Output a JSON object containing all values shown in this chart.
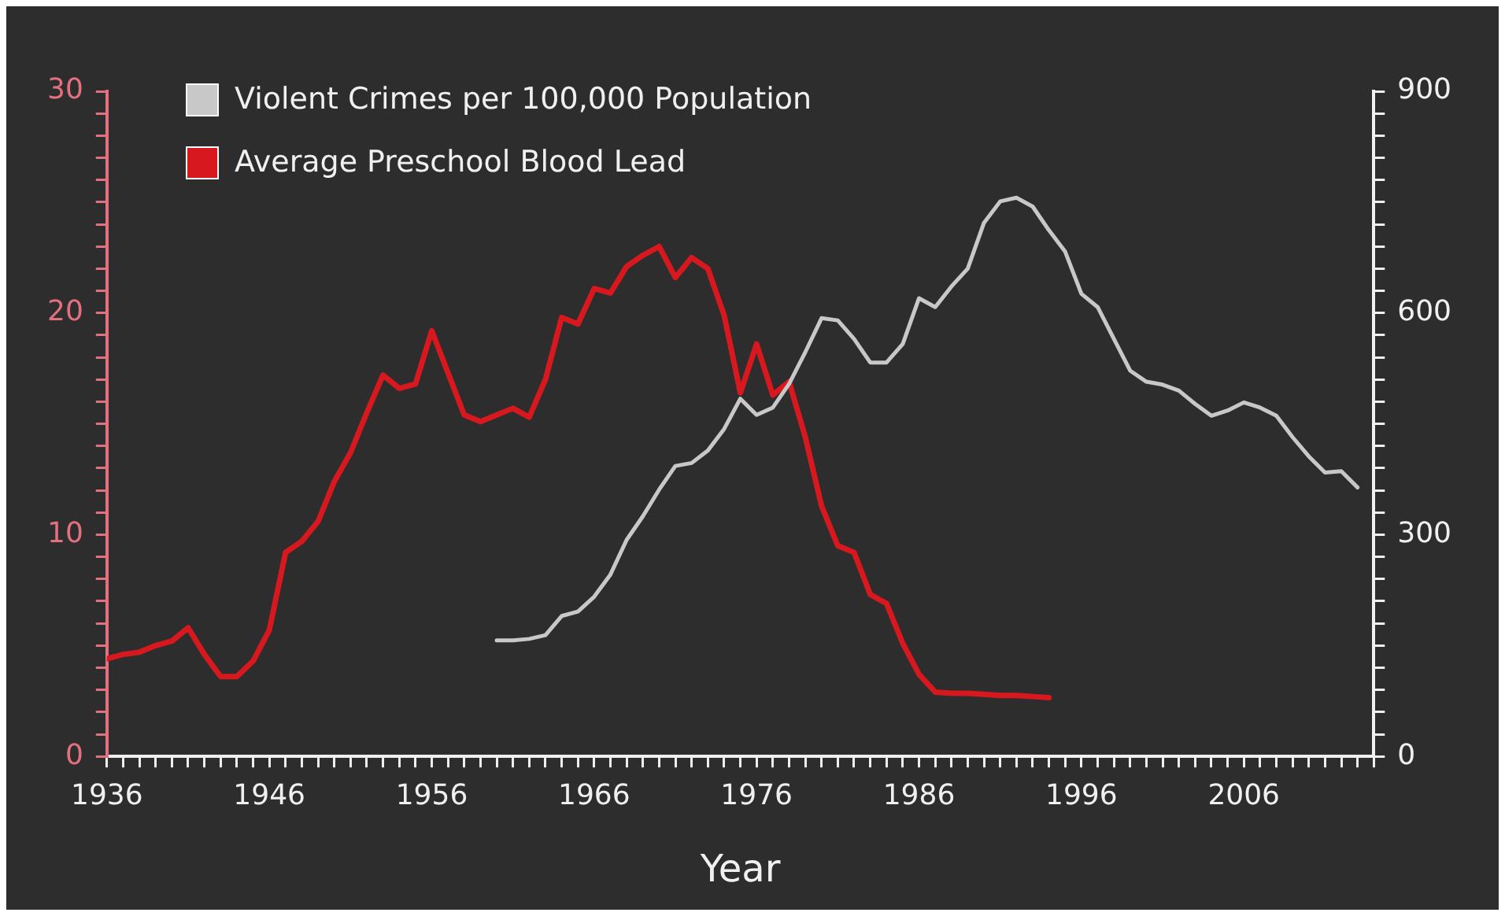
{
  "chart_data": {
    "type": "line",
    "xlabel": "Year",
    "legend": "top left",
    "grid": false,
    "marker": "none",
    "line_style": "solid",
    "xlim": [
      1936,
      2014
    ],
    "xticks": [
      1936,
      {
        "value": 1937,
        "label": null
      },
      {
        "value": 1938,
        "label": null
      },
      {
        "value": 1939,
        "label": null
      },
      {
        "value": 1940,
        "label": null
      },
      {
        "value": 1941,
        "label": null
      },
      {
        "value": 1942,
        "label": null
      },
      {
        "value": 1943,
        "label": null
      },
      {
        "value": 1944,
        "label": null
      },
      {
        "value": 1945,
        "label": null
      },
      1946,
      {
        "value": 1947,
        "label": null
      },
      {
        "value": 1948,
        "label": null
      },
      {
        "value": 1949,
        "label": null
      },
      {
        "value": 1950,
        "label": null
      },
      {
        "value": 1951,
        "label": null
      },
      {
        "value": 1952,
        "label": null
      },
      {
        "value": 1953,
        "label": null
      },
      {
        "value": 1954,
        "label": null
      },
      {
        "value": 1955,
        "label": null
      },
      1956,
      {
        "value": 1957,
        "label": null
      },
      {
        "value": 1958,
        "label": null
      },
      {
        "value": 1959,
        "label": null
      },
      {
        "value": 1960,
        "label": null
      },
      {
        "value": 1961,
        "label": null
      },
      {
        "value": 1962,
        "label": null
      },
      {
        "value": 1963,
        "label": null
      },
      {
        "value": 1964,
        "label": null
      },
      {
        "value": 1965,
        "label": null
      },
      1966,
      {
        "value": 1967,
        "label": null
      },
      {
        "value": 1968,
        "label": null
      },
      {
        "value": 1969,
        "label": null
      },
      {
        "value": 1970,
        "label": null
      },
      {
        "value": 1971,
        "label": null
      },
      {
        "value": 1972,
        "label": null
      },
      {
        "value": 1973,
        "label": null
      },
      {
        "value": 1974,
        "label": null
      },
      {
        "value": 1975,
        "label": null
      },
      1976,
      {
        "value": 1977,
        "label": null
      },
      {
        "value": 1978,
        "label": null
      },
      {
        "value": 1979,
        "label": null
      },
      {
        "value": 1980,
        "label": null
      },
      {
        "value": 1981,
        "label": null
      },
      {
        "value": 1982,
        "label": null
      },
      {
        "value": 1983,
        "label": null
      },
      {
        "value": 1984,
        "label": null
      },
      {
        "value": 1985,
        "label": null
      },
      1986,
      {
        "value": 1987,
        "label": null
      },
      {
        "value": 1988,
        "label": null
      },
      {
        "value": 1989,
        "label": null
      },
      {
        "value": 1990,
        "label": null
      },
      {
        "value": 1991,
        "label": null
      },
      {
        "value": 1992,
        "label": null
      },
      {
        "value": 1993,
        "label": null
      },
      {
        "value": 1994,
        "label": null
      },
      {
        "value": 1995,
        "label": null
      },
      1996,
      {
        "value": 1997,
        "label": null
      },
      {
        "value": 1998,
        "label": null
      },
      {
        "value": 1999,
        "label": null
      },
      {
        "value": 2000,
        "label": null
      },
      {
        "value": 2001,
        "label": null
      },
      {
        "value": 2002,
        "label": null
      },
      {
        "value": 2003,
        "label": null
      },
      {
        "value": 2004,
        "label": null
      },
      {
        "value": 2005,
        "label": null
      },
      2006,
      {
        "value": 2007,
        "label": null
      },
      {
        "value": 2008,
        "label": null
      },
      {
        "value": 2009,
        "label": null
      },
      {
        "value": 2010,
        "label": null
      },
      {
        "value": 2011,
        "label": null
      },
      {
        "value": 2012,
        "label": null
      },
      {
        "value": 2013,
        "label": null
      },
      {
        "value": 2014,
        "label": null
      }
    ],
    "ylim": [
      0,
      30
    ],
    "yticks": [
      0,
      {
        "value": 1,
        "label": null
      },
      {
        "value": 2,
        "label": null
      },
      {
        "value": 3,
        "label": null
      },
      {
        "value": 4,
        "label": null
      },
      {
        "value": 5,
        "label": null
      },
      {
        "value": 6,
        "label": null
      },
      {
        "value": 7,
        "label": null
      },
      {
        "value": 8,
        "label": null
      },
      {
        "value": 9,
        "label": null
      },
      10,
      {
        "value": 11,
        "label": null
      },
      {
        "value": 12,
        "label": null
      },
      {
        "value": 13,
        "label": null
      },
      {
        "value": 14,
        "label": null
      },
      {
        "value": 15,
        "label": null
      },
      {
        "value": 16,
        "label": null
      },
      {
        "value": 17,
        "label": null
      },
      {
        "value": 18,
        "label": null
      },
      {
        "value": 19,
        "label": null
      },
      20,
      {
        "value": 21,
        "label": null
      },
      {
        "value": 22,
        "label": null
      },
      {
        "value": 23,
        "label": null
      },
      {
        "value": 24,
        "label": null
      },
      {
        "value": 25,
        "label": null
      },
      {
        "value": 26,
        "label": null
      },
      {
        "value": 27,
        "label": null
      },
      {
        "value": 28,
        "label": null
      },
      {
        "value": 29,
        "label": null
      },
      30
    ],
    "y2lim": [
      0,
      900
    ],
    "y2ticks": [
      0,
      {
        "value": 30,
        "label": null
      },
      {
        "value": 60,
        "label": null
      },
      {
        "value": 90,
        "label": null
      },
      {
        "value": 120,
        "label": null
      },
      {
        "value": 150,
        "label": null
      },
      {
        "value": 180,
        "label": null
      },
      {
        "value": 210,
        "label": null
      },
      {
        "value": 240,
        "label": null
      },
      {
        "value": 270,
        "label": null
      },
      300,
      {
        "value": 330,
        "label": null
      },
      {
        "value": 360,
        "label": null
      },
      {
        "value": 390,
        "label": null
      },
      {
        "value": 420,
        "label": null
      },
      {
        "value": 450,
        "label": null
      },
      {
        "value": 480,
        "label": null
      },
      {
        "value": 510,
        "label": null
      },
      {
        "value": 540,
        "label": null
      },
      {
        "value": 570,
        "label": null
      },
      600,
      {
        "value": 630,
        "label": null
      },
      {
        "value": 660,
        "label": null
      },
      {
        "value": 690,
        "label": null
      },
      {
        "value": 720,
        "label": null
      },
      {
        "value": 750,
        "label": null
      },
      {
        "value": 780,
        "label": null
      },
      {
        "value": 810,
        "label": null
      },
      {
        "value": 840,
        "label": null
      },
      {
        "value": 870,
        "label": null
      },
      900
    ],
    "series": [
      {
        "name": "Violent Crimes per 100,000 Population",
        "color": "#c8c8c8",
        "axis": "y2",
        "x": [
          1960,
          1961,
          1962,
          1963,
          1964,
          1965,
          1966,
          1967,
          1968,
          1969,
          1970,
          1971,
          1972,
          1973,
          1974,
          1975,
          1976,
          1977,
          1978,
          1979,
          1980,
          1981,
          1982,
          1983,
          1984,
          1985,
          1986,
          1987,
          1988,
          1989,
          1990,
          1991,
          1992,
          1993,
          1994,
          1995,
          1996,
          1997,
          1998,
          1999,
          2000,
          2001,
          2002,
          2003,
          2004,
          2005,
          2006,
          2007,
          2008,
          2009,
          2010,
          2011,
          2012,
          2013
        ],
        "values": [
          157,
          157,
          159,
          164,
          190,
          196,
          216,
          246,
          293,
          325,
          361,
          393,
          397,
          414,
          443,
          484,
          462,
          472,
          504,
          547,
          593,
          590,
          565,
          533,
          533,
          558,
          620,
          608,
          636,
          660,
          722,
          751,
          756,
          744,
          712,
          683,
          626,
          608,
          565,
          522,
          507,
          503,
          495,
          477,
          461,
          468,
          479,
          472,
          461,
          432,
          406,
          384,
          386,
          364
        ]
      },
      {
        "name": "Average Preschool Blood Lead",
        "color": "#d7191f",
        "axis": "y",
        "x": [
          1936,
          1937,
          1938,
          1939,
          1940,
          1941,
          1942,
          1943,
          1944,
          1945,
          1946,
          1947,
          1948,
          1949,
          1950,
          1951,
          1952,
          1953,
          1954,
          1955,
          1956,
          1957,
          1958,
          1959,
          1960,
          1961,
          1962,
          1963,
          1964,
          1965,
          1966,
          1967,
          1968,
          1969,
          1970,
          1971,
          1972,
          1973,
          1974,
          1975,
          1976,
          1977,
          1978,
          1979,
          1980,
          1981,
          1982,
          1983,
          1984,
          1985,
          1986,
          1987,
          1988,
          1989,
          1990,
          1991,
          1992,
          1993,
          1994
        ],
        "values": [
          4.4,
          4.6,
          4.7,
          5.0,
          5.2,
          5.8,
          4.6,
          3.6,
          3.6,
          4.3,
          5.7,
          9.2,
          9.7,
          10.6,
          12.4,
          13.7,
          15.5,
          17.2,
          16.6,
          16.8,
          19.2,
          17.3,
          15.4,
          15.1,
          15.4,
          15.7,
          15.3,
          17.0,
          19.8,
          19.5,
          21.1,
          20.9,
          22.1,
          22.6,
          23.0,
          21.6,
          22.5,
          22.0,
          19.9,
          16.4,
          18.6,
          16.3,
          16.9,
          14.4,
          11.3,
          9.5,
          9.2,
          7.3,
          6.9,
          5.1,
          3.7,
          2.9,
          2.85,
          2.85,
          2.8,
          2.75,
          2.75,
          2.7,
          2.65
        ]
      }
    ]
  }
}
